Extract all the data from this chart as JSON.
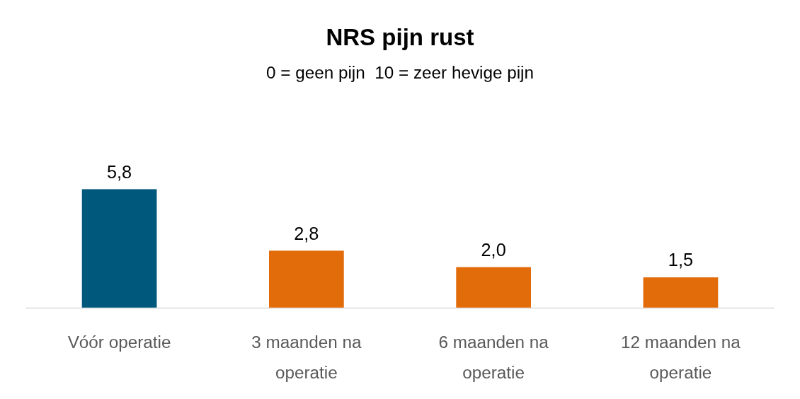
{
  "chart_data": {
    "type": "bar",
    "title": "NRS pijn rust",
    "subtitle": "0 = geen pijn  10 = zeer hevige pijn",
    "categories": [
      "Vóór operatie",
      "3 maanden na operatie",
      "6 maanden na operatie",
      "12 maanden na operatie"
    ],
    "values": [
      5.8,
      2.8,
      2.0,
      1.5
    ],
    "colors": [
      "#00587c",
      "#e36c0a",
      "#e36c0a",
      "#e36c0a"
    ],
    "value_labels": [
      "5,8",
      "2,8",
      "2,0",
      "1,5"
    ]
  }
}
